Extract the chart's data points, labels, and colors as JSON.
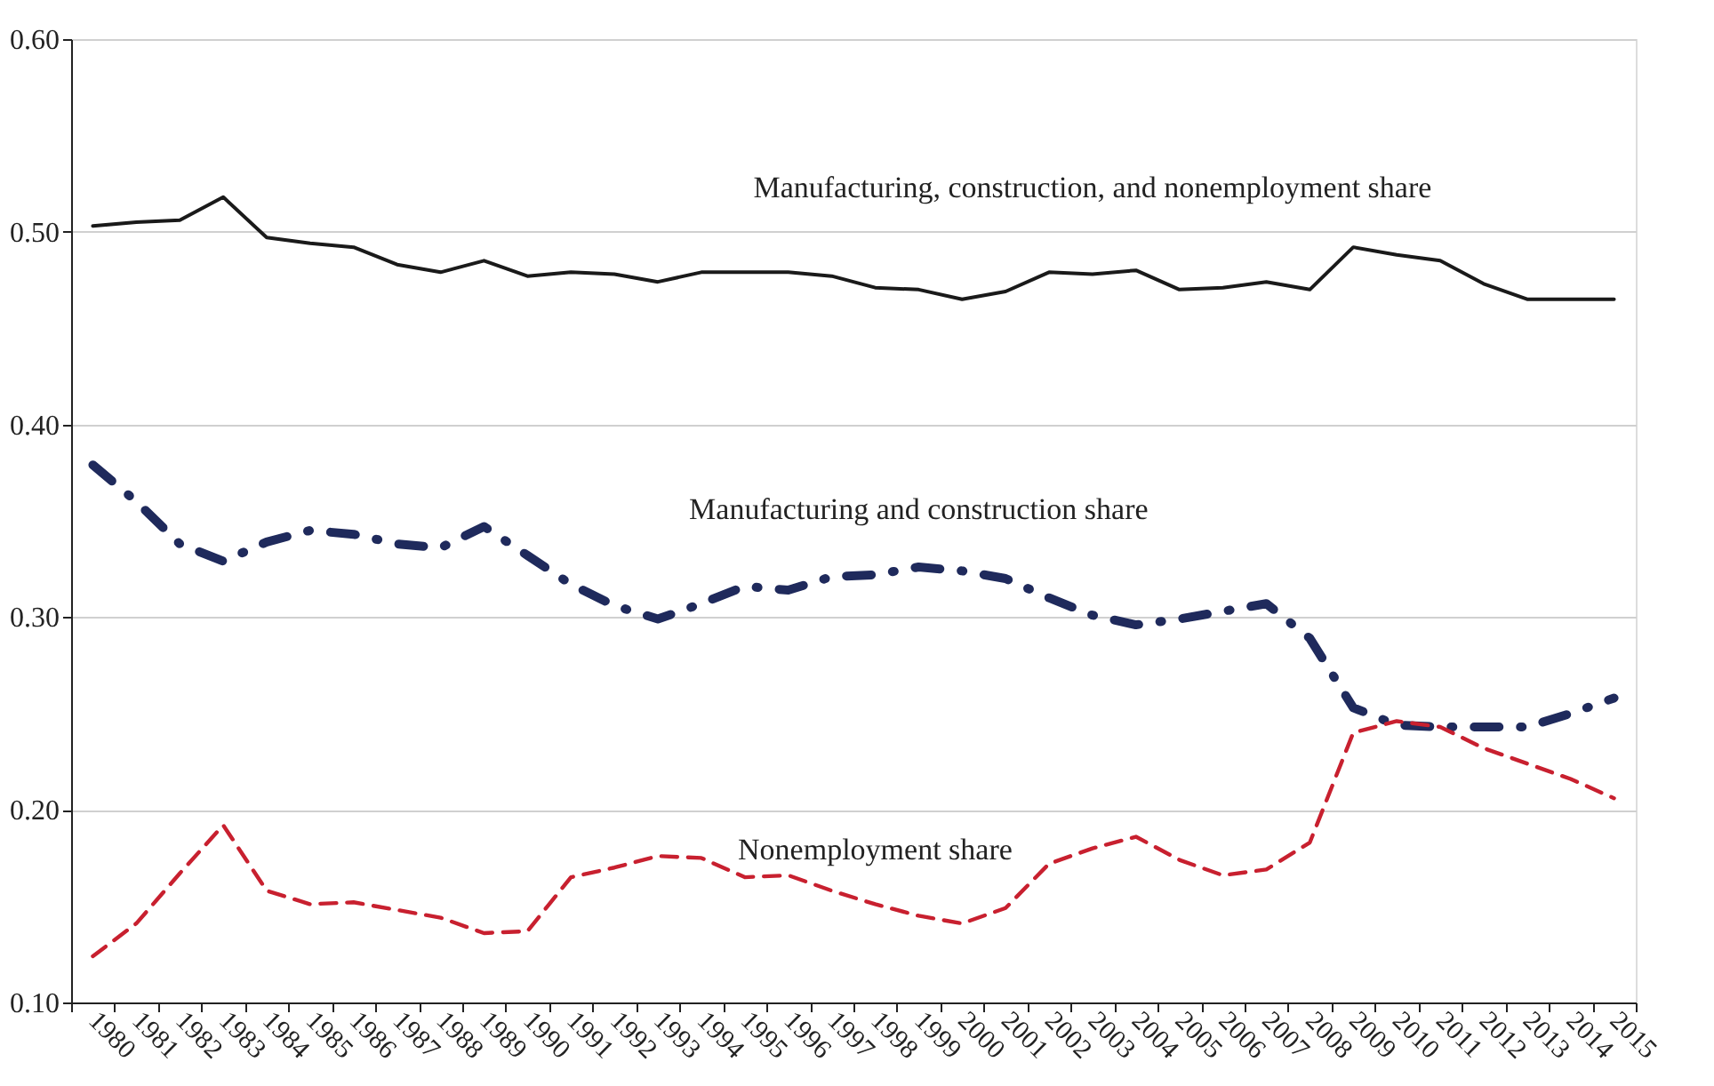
{
  "chart_data": {
    "type": "line",
    "categories": [
      "1980",
      "1981",
      "1982",
      "1983",
      "1984",
      "1985",
      "1986",
      "1987",
      "1988",
      "1989",
      "1990",
      "1991",
      "1992",
      "1993",
      "1994",
      "1995",
      "1996",
      "1997",
      "1998",
      "1999",
      "2000",
      "2001",
      "2002",
      "2003",
      "2004",
      "2005",
      "2006",
      "2007",
      "2008",
      "2009",
      "2010",
      "2011",
      "2012",
      "2013",
      "2014",
      "2015"
    ],
    "ylim": [
      0.1,
      0.6
    ],
    "yticks": [
      {
        "value": 0.1,
        "label": "0.10"
      },
      {
        "value": 0.2,
        "label": "0.20"
      },
      {
        "value": 0.3,
        "label": "0.30"
      },
      {
        "value": 0.4,
        "label": "0.40"
      },
      {
        "value": 0.5,
        "label": "0.50"
      },
      {
        "value": 0.6,
        "label": "0.60"
      }
    ],
    "grid": "y",
    "legend": false,
    "marker": "none",
    "series": [
      {
        "name": "Manufacturing, construction, and nonemployment share",
        "color": "#1a1a1a",
        "line_style": "solid",
        "values": [
          0.503,
          0.505,
          0.506,
          0.518,
          0.497,
          0.494,
          0.492,
          0.483,
          0.479,
          0.485,
          0.477,
          0.479,
          0.478,
          0.474,
          0.479,
          0.479,
          0.479,
          0.477,
          0.471,
          0.47,
          0.465,
          0.469,
          0.479,
          0.478,
          0.48,
          0.47,
          0.471,
          0.474,
          0.47,
          0.492,
          0.488,
          0.485,
          0.473,
          0.465,
          0.465,
          0.465
        ]
      },
      {
        "name": "Manufacturing and construction share",
        "color": "#1f2a5c",
        "line_style": "dashdot",
        "values": [
          0.379,
          0.36,
          0.338,
          0.329,
          0.339,
          0.345,
          0.343,
          0.338,
          0.336,
          0.347,
          0.332,
          0.317,
          0.306,
          0.299,
          0.307,
          0.316,
          0.314,
          0.321,
          0.322,
          0.326,
          0.324,
          0.32,
          0.31,
          0.301,
          0.296,
          0.299,
          0.303,
          0.307,
          0.289,
          0.253,
          0.244,
          0.243,
          0.243,
          0.243,
          0.25,
          0.258
        ]
      },
      {
        "name": "Nonemployment share",
        "color": "#c8202f",
        "line_style": "dashed",
        "values": [
          0.124,
          0.141,
          0.167,
          0.192,
          0.158,
          0.151,
          0.152,
          0.148,
          0.144,
          0.136,
          0.137,
          0.165,
          0.17,
          0.176,
          0.175,
          0.165,
          0.166,
          0.158,
          0.151,
          0.145,
          0.141,
          0.149,
          0.172,
          0.18,
          0.186,
          0.174,
          0.166,
          0.169,
          0.183,
          0.24,
          0.246,
          0.243,
          0.232,
          0.224,
          0.216,
          0.206
        ]
      }
    ]
  }
}
